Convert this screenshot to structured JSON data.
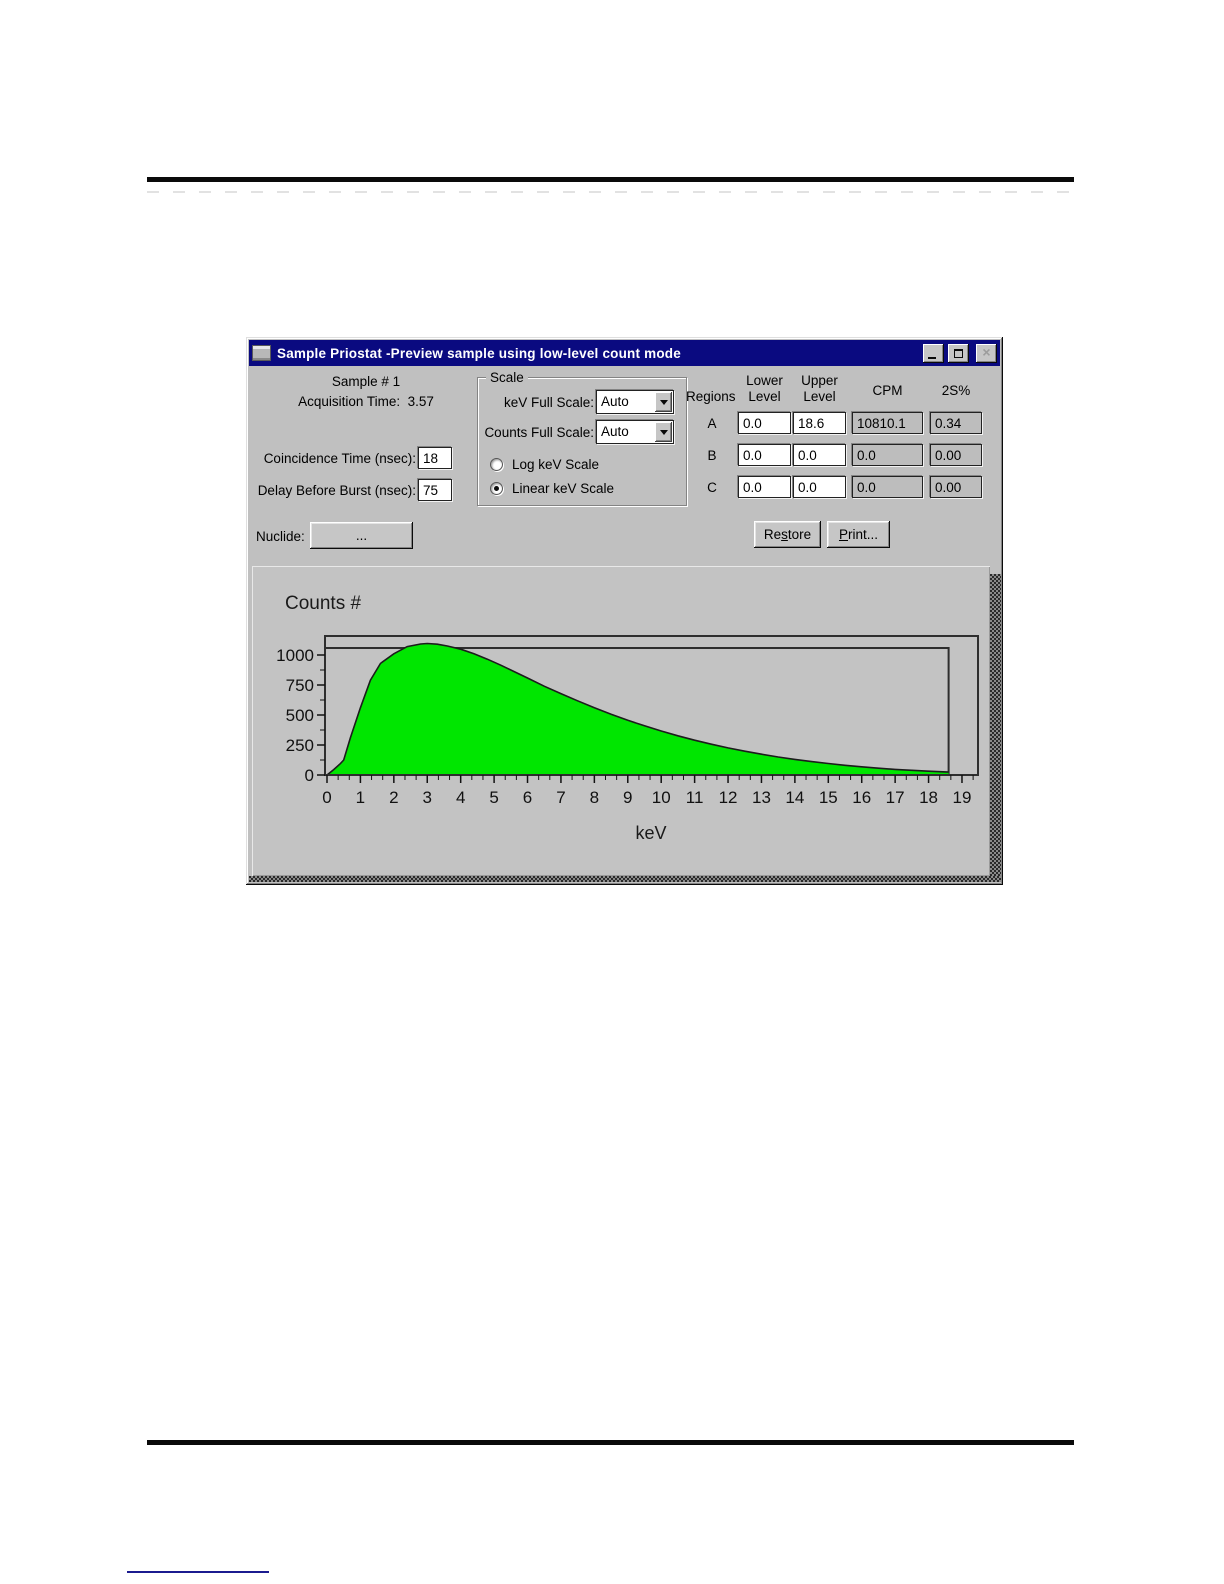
{
  "window": {
    "title": "Sample Priostat -Preview sample using low-level count mode",
    "icons": {
      "close": "×"
    }
  },
  "info": {
    "sample_label": "Sample # 1",
    "acquisition_label": "Acquisition Time:",
    "acquisition_value": "3.57",
    "coincidence_label": "Coincidence Time (nsec):",
    "coincidence_value": "18",
    "delay_label": "Delay Before Burst (nsec):",
    "delay_value": "75",
    "nuclide_label": "Nuclide:",
    "nuclide_button": "..."
  },
  "scale": {
    "group_label": "Scale",
    "kev_label": "keV Full Scale:",
    "kev_value": "Auto",
    "counts_label": "Counts Full Scale:",
    "counts_value": "Auto",
    "log_label": "Log keV Scale",
    "linear_label": "Linear keV Scale",
    "selected": "linear"
  },
  "regions": {
    "header": {
      "regions": "Regions",
      "lower": [
        "Lower",
        "Level"
      ],
      "upper": [
        "Upper",
        "Level"
      ],
      "cpm": "CPM",
      "pct": "2S%"
    },
    "rows": [
      {
        "name": "A",
        "lower": "0.0",
        "upper": "18.6",
        "cpm": "10810.1",
        "pct": "0.34"
      },
      {
        "name": "B",
        "lower": "0.0",
        "upper": "0.0",
        "cpm": "0.0",
        "pct": "0.00"
      },
      {
        "name": "C",
        "lower": "0.0",
        "upper": "0.0",
        "cpm": "0.0",
        "pct": "0.00"
      }
    ]
  },
  "actions": {
    "restore": {
      "pre": "Re",
      "accel": "s",
      "post": "tore"
    },
    "print": {
      "pre": "",
      "accel": "P",
      "post": "rint..."
    }
  },
  "chart_data": {
    "type": "area",
    "title": "Counts #",
    "xlabel": "keV",
    "xlim": [
      0,
      19.5
    ],
    "ylim": [
      0,
      1158
    ],
    "xticks": [
      0,
      1,
      2,
      3,
      4,
      5,
      6,
      7,
      8,
      9,
      10,
      11,
      12,
      13,
      14,
      15,
      16,
      17,
      18,
      19
    ],
    "yticks": [
      0,
      250,
      500,
      750,
      1000
    ],
    "x": [
      0,
      0.2,
      0.4,
      0.5,
      0.7,
      1,
      1.3,
      1.6,
      2,
      2.4,
      2.8,
      3,
      3.3,
      3.6,
      4,
      4.4,
      4.8,
      5.2,
      5.6,
      6,
      6.5,
      7,
      7.5,
      8,
      8.5,
      9,
      9.5,
      10,
      10.5,
      11,
      11.5,
      12,
      12.5,
      13,
      13.5,
      14,
      14.5,
      15,
      15.5,
      16,
      16.5,
      17,
      17.5,
      18,
      18.6
    ],
    "y": [
      0,
      45,
      95,
      125,
      310,
      560,
      790,
      930,
      1010,
      1070,
      1092,
      1096,
      1090,
      1075,
      1048,
      1010,
      965,
      915,
      862,
      808,
      740,
      678,
      618,
      560,
      506,
      456,
      410,
      367,
      327,
      290,
      257,
      226,
      198,
      173,
      150,
      130,
      112,
      96,
      81,
      68,
      57,
      47,
      39,
      32,
      24
    ],
    "region_box": {
      "lower": 0.0,
      "upper": 18.6,
      "top": 1058
    },
    "fill_color": "#00e600",
    "line_color": "#1c1c1c",
    "frame_color": "#2e2e2e",
    "grid": false,
    "legend": false
  }
}
